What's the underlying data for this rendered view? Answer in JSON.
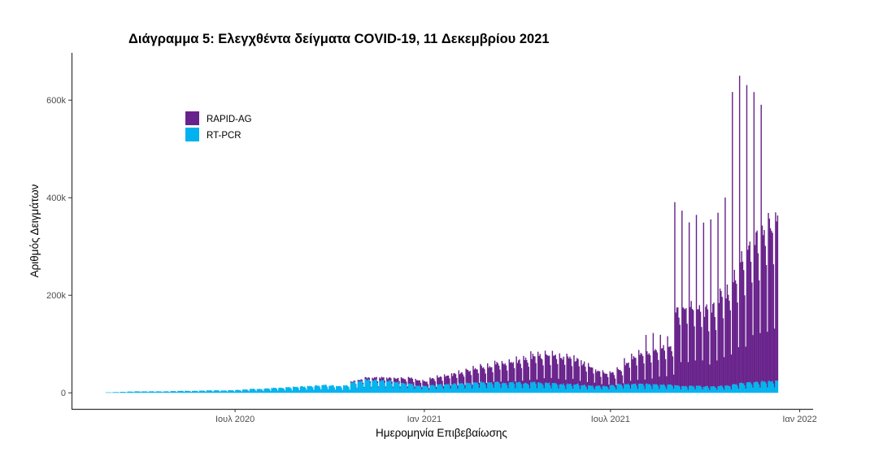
{
  "chart_data": {
    "type": "bar",
    "stacked": true,
    "title": "Διάγραμμα 5: Ελεγχθέντα δείγματα COVID-19, 11 Δεκεμβρίου 2021",
    "xlabel": "Ημερομηνία Επιβεβαίωσης",
    "ylabel": "Αριθμός Δειγμάτων",
    "xlim": [
      "2020-01-24",
      "2022-01-14"
    ],
    "ylim": [
      -33000,
      697000
    ],
    "grid": false,
    "legend_position": "top-left",
    "x_ticks": [
      {
        "date": "2020-07-01",
        "label": "Ιουλ 2020"
      },
      {
        "date": "2021-01-01",
        "label": "Ιαν 2021"
      },
      {
        "date": "2021-07-01",
        "label": "Ιουλ 2021"
      },
      {
        "date": "2022-01-01",
        "label": "Ιαν 2022"
      }
    ],
    "y_ticks": [
      {
        "value": 0,
        "label": "0"
      },
      {
        "value": 200000,
        "label": "200k"
      },
      {
        "value": 400000,
        "label": "400k"
      },
      {
        "value": 600000,
        "label": "600k"
      }
    ],
    "first_day": "2020-02-26",
    "last_day": "2021-12-10",
    "aggregation": "weekly, values in thousands; daily bars expanded by day-of-week profile",
    "day_of_week_profile": [
      1.0,
      0.95,
      1.0,
      0.98,
      0.92,
      0.75,
      0.35
    ],
    "series": [
      {
        "name": "RAPID-AG",
        "color": "#68228b",
        "weekly_typical_k": [
          0,
          0,
          0,
          0,
          0,
          0,
          0,
          0,
          0,
          0,
          0,
          0,
          0,
          0,
          0,
          0,
          0,
          0,
          0,
          0,
          0,
          0,
          0,
          0,
          0,
          0,
          0,
          0,
          0,
          0,
          0,
          0,
          0,
          0,
          2,
          3,
          4,
          5,
          6,
          6,
          8,
          10,
          12,
          12,
          10,
          14,
          16,
          18,
          20,
          22,
          26,
          30,
          32,
          34,
          38,
          40,
          42,
          45,
          50,
          55,
          55,
          58,
          58,
          56,
          55,
          52,
          45,
          40,
          30,
          28,
          25,
          30,
          45,
          55,
          60,
          65,
          75,
          80,
          80,
          160,
          170,
          165,
          160,
          160,
          165,
          190,
          200,
          230,
          260,
          290,
          300,
          320,
          330
        ],
        "weekly_peak_k": [
          0,
          0,
          0,
          0,
          0,
          0,
          0,
          0,
          0,
          0,
          0,
          0,
          0,
          0,
          0,
          0,
          0,
          0,
          0,
          0,
          0,
          0,
          0,
          0,
          0,
          0,
          0,
          0,
          0,
          0,
          0,
          0,
          0,
          0,
          2,
          3,
          5,
          6,
          7,
          7,
          9,
          12,
          14,
          14,
          12,
          16,
          18,
          21,
          23,
          25,
          30,
          34,
          37,
          39,
          44,
          46,
          48,
          52,
          57,
          63,
          63,
          66,
          66,
          64,
          63,
          60,
          52,
          46,
          35,
          32,
          29,
          35,
          52,
          63,
          69,
          100,
          105,
          102,
          100,
          375,
          360,
          335,
          350,
          337,
          342,
          356,
          385,
          600,
          630,
          610,
          595,
          568,
          345
        ]
      },
      {
        "name": "RT-PCR",
        "color": "#00b2ee",
        "weekly_typical_k": [
          1,
          1.5,
          2,
          2.5,
          3,
          3,
          3,
          3,
          3,
          3.5,
          4,
          4,
          4,
          4.5,
          5,
          5,
          5,
          5.5,
          6,
          7,
          8,
          8,
          9,
          10,
          10,
          11,
          12,
          13,
          14,
          15,
          16,
          15,
          14,
          15,
          22,
          24,
          26,
          26,
          25,
          24,
          22,
          20,
          18,
          15,
          14,
          16,
          18,
          18,
          18,
          20,
          20,
          22,
          22,
          22,
          22,
          20,
          22,
          22,
          20,
          22,
          20,
          20,
          20,
          18,
          18,
          18,
          16,
          15,
          14,
          14,
          15,
          18,
          18,
          18,
          18,
          18,
          18,
          17,
          17,
          15,
          14,
          14,
          14,
          13,
          13,
          14,
          15,
          18,
          20,
          22,
          22,
          24,
          24
        ]
      }
    ]
  }
}
